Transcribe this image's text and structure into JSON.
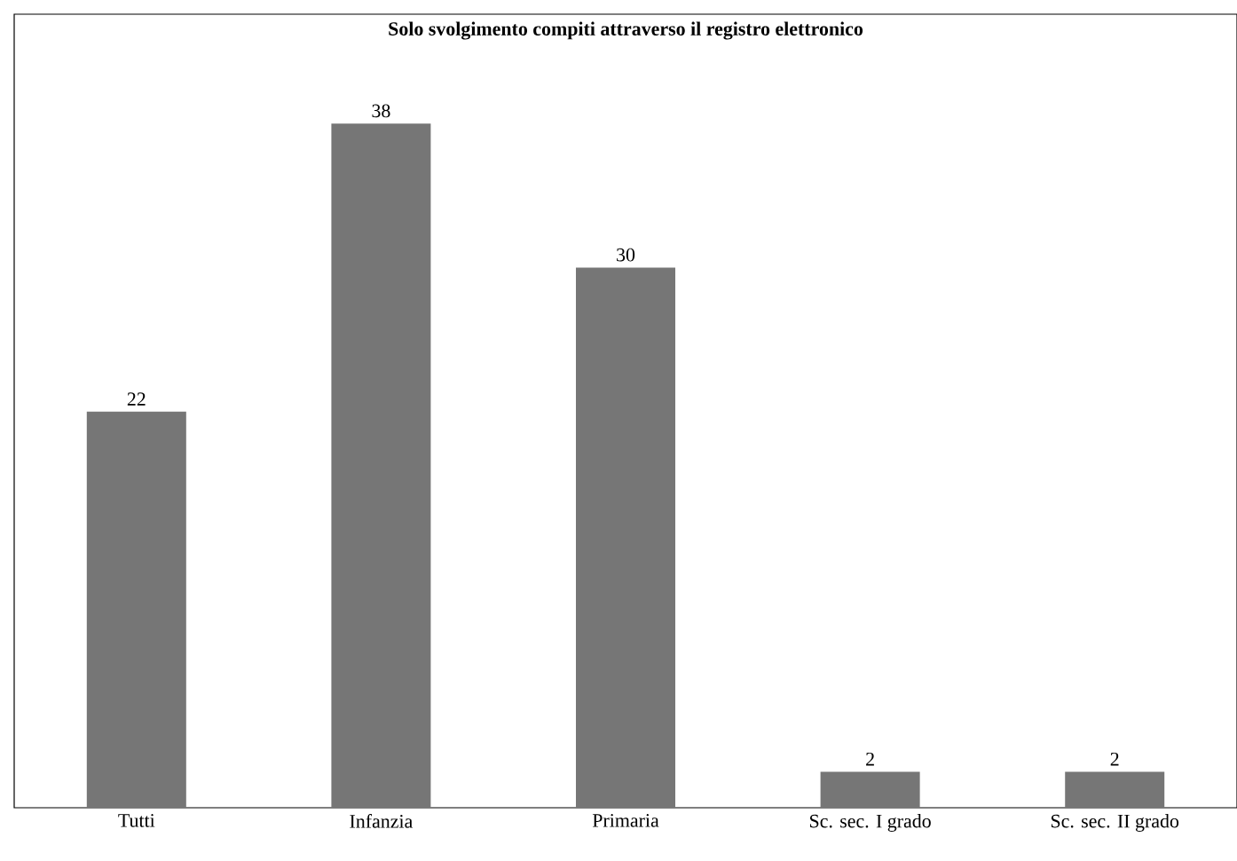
{
  "chart_data": {
    "type": "bar",
    "title": "Solo svolgimento compiti attraverso il registro elettronico",
    "categories": [
      "Tutti",
      "Infanzia",
      "Primaria",
      "Sc. sec. I grado",
      "Sc. sec. II grado"
    ],
    "values": [
      22,
      38,
      30,
      2,
      2
    ],
    "color": "#767676",
    "data_labels": true
  }
}
